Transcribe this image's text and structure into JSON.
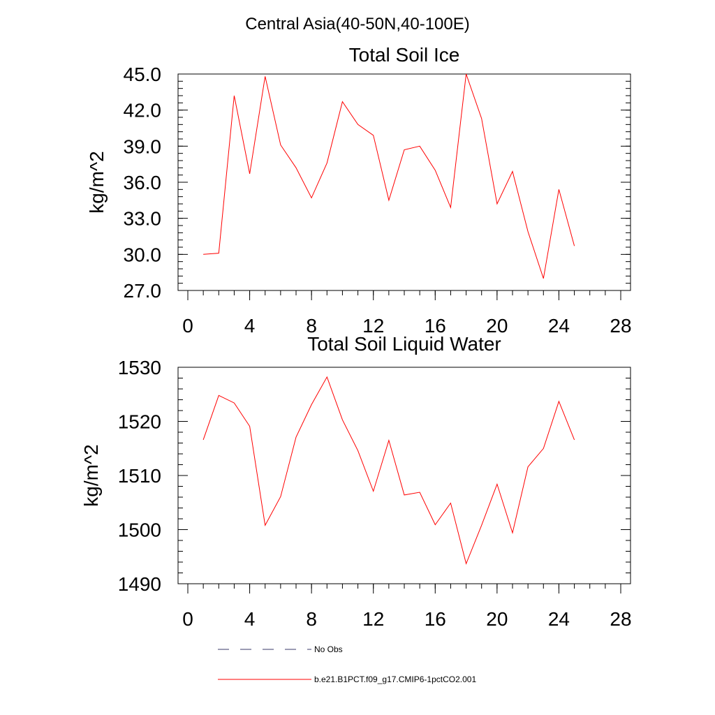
{
  "page_title": "Central Asia(40-50N,40-100E)",
  "legend": [
    {
      "label": "No Obs",
      "style": "dashed",
      "color": "#3a3a6a"
    },
    {
      "label": "b.e21.B1PCT.f09_g17.CMIP6-1pctCO2.001",
      "style": "solid",
      "color": "#ff0000"
    }
  ],
  "chart_data": [
    {
      "type": "line",
      "title": "Total Soil Ice",
      "xlabel": "",
      "ylabel": "kg/m^2",
      "xlim": [
        0,
        28
      ],
      "ylim": [
        27,
        45
      ],
      "x_ticks": [
        0,
        4,
        8,
        12,
        16,
        20,
        24,
        28
      ],
      "y_ticks": [
        "27.0",
        "30.0",
        "33.0",
        "36.0",
        "39.0",
        "42.0",
        "45.0"
      ],
      "grid": false,
      "series": [
        {
          "name": "b.e21.B1PCT.f09_g17.CMIP6-1pctCO2.001",
          "color": "#ff0000",
          "x": [
            1,
            2,
            3,
            4,
            5,
            6,
            7,
            8,
            9,
            10,
            11,
            12,
            13,
            14,
            15,
            16,
            17,
            18,
            19,
            20,
            21,
            22,
            23,
            24,
            25
          ],
          "y": [
            30.0,
            30.1,
            43.2,
            36.7,
            44.8,
            39.1,
            37.2,
            34.7,
            37.6,
            42.7,
            40.8,
            39.9,
            34.5,
            38.7,
            39.0,
            37.0,
            33.9,
            45.0,
            41.3,
            34.2,
            36.9,
            31.9,
            28.0,
            35.4,
            30.7
          ]
        }
      ]
    },
    {
      "type": "line",
      "title": "Total Soil Liquid Water",
      "xlabel": "",
      "ylabel": "kg/m^2",
      "xlim": [
        0,
        28
      ],
      "ylim": [
        1490,
        1530
      ],
      "x_ticks": [
        0,
        4,
        8,
        12,
        16,
        20,
        24,
        28
      ],
      "y_ticks": [
        "1490",
        "1500",
        "1510",
        "1520",
        "1530"
      ],
      "grid": false,
      "series": [
        {
          "name": "b.e21.B1PCT.f09_g17.CMIP6-1pctCO2.001",
          "color": "#ff0000",
          "x": [
            1,
            2,
            3,
            4,
            5,
            6,
            7,
            8,
            9,
            10,
            11,
            12,
            13,
            14,
            15,
            16,
            17,
            18,
            19,
            20,
            21,
            22,
            23,
            24,
            25
          ],
          "y": [
            1516.6,
            1524.8,
            1523.4,
            1519.1,
            1500.8,
            1506.1,
            1517.1,
            1523.1,
            1528.2,
            1520.3,
            1514.6,
            1507.1,
            1516.5,
            1506.4,
            1506.9,
            1500.9,
            1504.9,
            1493.7,
            1500.8,
            1508.4,
            1499.4,
            1511.6,
            1515.0,
            1523.7,
            1516.6
          ]
        }
      ]
    }
  ]
}
